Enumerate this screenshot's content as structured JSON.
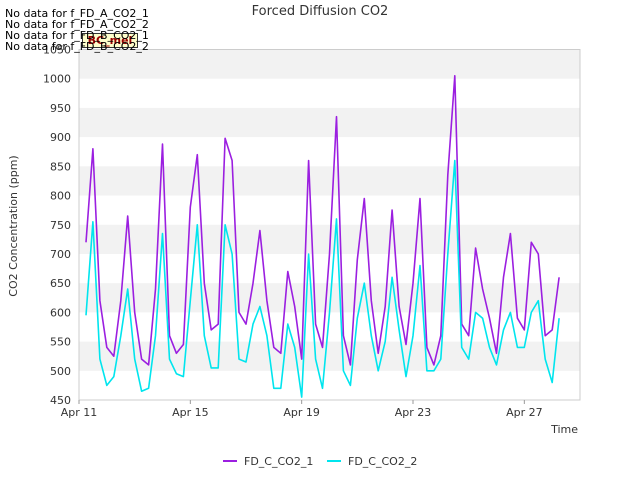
{
  "no_data_messages": [
    "No data for f_FD_A_CO2_1",
    "No data for f_FD_A_CO2_2",
    "No data for f_FD_B_CO2_1",
    "No data for f_FD_B_CO2_2"
  ],
  "badge_label": "BC_mel",
  "chart_data": {
    "type": "line",
    "title": "Forced Diffusion CO2",
    "xlabel": "Time",
    "ylabel": "CO2 Concentration (ppm)",
    "ylim": [
      450,
      1050
    ],
    "yticks": [
      450,
      500,
      550,
      600,
      650,
      700,
      750,
      800,
      850,
      900,
      950,
      1000,
      1050
    ],
    "xlim": [
      "2024-04-11",
      "2024-04-29"
    ],
    "xticks": [
      {
        "x": "2024-04-11",
        "label": "Apr 11"
      },
      {
        "x": "2024-04-15",
        "label": "Apr 15"
      },
      {
        "x": "2024-04-19",
        "label": "Apr 19"
      },
      {
        "x": "2024-04-23",
        "label": "Apr 23"
      },
      {
        "x": "2024-04-27",
        "label": "Apr 27"
      }
    ],
    "grid": "horizontal bands",
    "legend": "bottom-center",
    "series": [
      {
        "name": "FD_C_CO2_1",
        "color": "#9b1fe0",
        "x": [
          "2024-04-11 06:00",
          "2024-04-11 12:00",
          "2024-04-11 18:00",
          "2024-04-12 00:00",
          "2024-04-12 06:00",
          "2024-04-12 12:00",
          "2024-04-12 18:00",
          "2024-04-13 00:00",
          "2024-04-13 06:00",
          "2024-04-13 12:00",
          "2024-04-13 18:00",
          "2024-04-14 00:00",
          "2024-04-14 06:00",
          "2024-04-14 12:00",
          "2024-04-14 18:00",
          "2024-04-15 00:00",
          "2024-04-15 06:00",
          "2024-04-15 12:00",
          "2024-04-15 18:00",
          "2024-04-16 00:00",
          "2024-04-16 06:00",
          "2024-04-16 12:00",
          "2024-04-16 18:00",
          "2024-04-17 00:00",
          "2024-04-17 06:00",
          "2024-04-17 12:00",
          "2024-04-17 18:00",
          "2024-04-18 00:00",
          "2024-04-18 06:00",
          "2024-04-18 12:00",
          "2024-04-18 18:00",
          "2024-04-19 00:00",
          "2024-04-19 06:00",
          "2024-04-19 12:00",
          "2024-04-19 18:00",
          "2024-04-20 00:00",
          "2024-04-20 06:00",
          "2024-04-20 12:00",
          "2024-04-20 18:00",
          "2024-04-21 00:00",
          "2024-04-21 06:00",
          "2024-04-21 12:00",
          "2024-04-21 18:00",
          "2024-04-22 00:00",
          "2024-04-22 06:00",
          "2024-04-22 12:00",
          "2024-04-22 18:00",
          "2024-04-23 00:00",
          "2024-04-23 06:00",
          "2024-04-23 12:00",
          "2024-04-23 18:00",
          "2024-04-24 00:00",
          "2024-04-24 06:00",
          "2024-04-24 12:00",
          "2024-04-24 18:00",
          "2024-04-25 00:00",
          "2024-04-25 06:00",
          "2024-04-25 12:00",
          "2024-04-25 18:00",
          "2024-04-26 00:00",
          "2024-04-26 06:00",
          "2024-04-26 12:00",
          "2024-04-26 18:00",
          "2024-04-27 00:00",
          "2024-04-27 06:00",
          "2024-04-27 12:00",
          "2024-04-27 18:00",
          "2024-04-28 00:00",
          "2024-04-28 06:00"
        ],
        "values": [
          720,
          880,
          620,
          540,
          525,
          620,
          765,
          600,
          520,
          510,
          640,
          888,
          560,
          530,
          545,
          780,
          870,
          650,
          570,
          580,
          898,
          860,
          600,
          580,
          650,
          740,
          620,
          540,
          530,
          670,
          610,
          520,
          860,
          580,
          540,
          700,
          935,
          560,
          510,
          690,
          795,
          620,
          530,
          610,
          775,
          610,
          545,
          650,
          795,
          540,
          510,
          560,
          835,
          1005,
          580,
          560,
          710,
          640,
          590,
          530,
          660,
          735,
          590,
          570,
          720,
          700,
          560,
          570,
          660
        ]
      },
      {
        "name": "FD_C_CO2_2",
        "color": "#00e5ee",
        "x": [
          "2024-04-11 06:00",
          "2024-04-11 12:00",
          "2024-04-11 18:00",
          "2024-04-12 00:00",
          "2024-04-12 06:00",
          "2024-04-12 12:00",
          "2024-04-12 18:00",
          "2024-04-13 00:00",
          "2024-04-13 06:00",
          "2024-04-13 12:00",
          "2024-04-13 18:00",
          "2024-04-14 00:00",
          "2024-04-14 06:00",
          "2024-04-14 12:00",
          "2024-04-14 18:00",
          "2024-04-15 00:00",
          "2024-04-15 06:00",
          "2024-04-15 12:00",
          "2024-04-15 18:00",
          "2024-04-16 00:00",
          "2024-04-16 06:00",
          "2024-04-16 12:00",
          "2024-04-16 18:00",
          "2024-04-17 00:00",
          "2024-04-17 06:00",
          "2024-04-17 12:00",
          "2024-04-17 18:00",
          "2024-04-18 00:00",
          "2024-04-18 06:00",
          "2024-04-18 12:00",
          "2024-04-18 18:00",
          "2024-04-19 00:00",
          "2024-04-19 06:00",
          "2024-04-19 12:00",
          "2024-04-19 18:00",
          "2024-04-20 00:00",
          "2024-04-20 06:00",
          "2024-04-20 12:00",
          "2024-04-20 18:00",
          "2024-04-21 00:00",
          "2024-04-21 06:00",
          "2024-04-21 12:00",
          "2024-04-21 18:00",
          "2024-04-22 00:00",
          "2024-04-22 06:00",
          "2024-04-22 12:00",
          "2024-04-22 18:00",
          "2024-04-23 00:00",
          "2024-04-23 06:00",
          "2024-04-23 12:00",
          "2024-04-23 18:00",
          "2024-04-24 00:00",
          "2024-04-24 06:00",
          "2024-04-24 12:00",
          "2024-04-24 18:00",
          "2024-04-25 00:00",
          "2024-04-25 06:00",
          "2024-04-25 12:00",
          "2024-04-25 18:00",
          "2024-04-26 00:00",
          "2024-04-26 06:00",
          "2024-04-26 12:00",
          "2024-04-26 18:00",
          "2024-04-27 00:00",
          "2024-04-27 06:00",
          "2024-04-27 12:00",
          "2024-04-27 18:00",
          "2024-04-28 00:00",
          "2024-04-28 06:00"
        ],
        "values": [
          595,
          755,
          520,
          475,
          490,
          560,
          640,
          520,
          465,
          470,
          560,
          735,
          520,
          495,
          490,
          620,
          750,
          560,
          505,
          505,
          750,
          700,
          520,
          515,
          580,
          610,
          560,
          470,
          470,
          580,
          540,
          455,
          700,
          520,
          470,
          600,
          760,
          500,
          475,
          590,
          650,
          560,
          500,
          550,
          660,
          570,
          490,
          560,
          680,
          500,
          500,
          520,
          700,
          860,
          540,
          520,
          600,
          590,
          540,
          510,
          570,
          600,
          540,
          540,
          600,
          620,
          520,
          480,
          590
        ]
      }
    ]
  }
}
